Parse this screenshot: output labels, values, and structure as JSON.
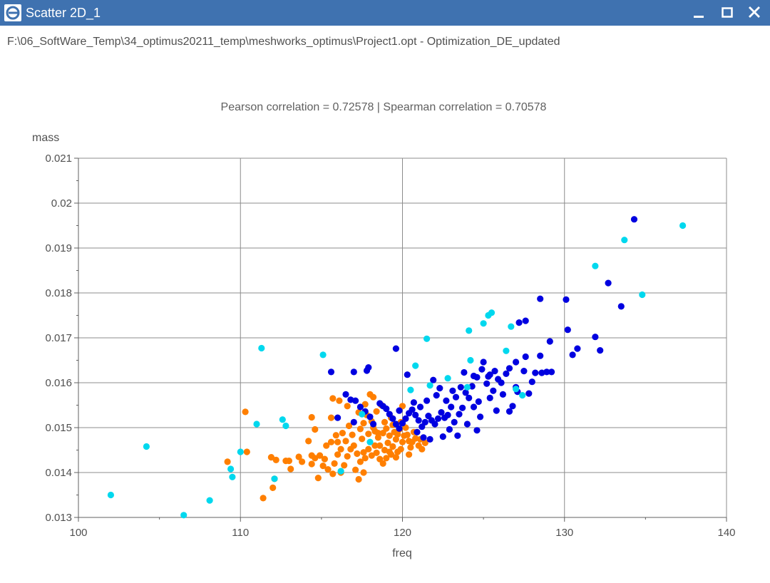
{
  "window": {
    "title": "Scatter 2D_1",
    "icon": "optimus-e-icon",
    "controls": [
      "minimize-icon",
      "maximize-icon",
      "close-icon"
    ]
  },
  "file_path": "F:\\06_SoftWare_Temp\\34_optimus20211_temp\\meshworks_optimus\\Project1.opt - Optimization_DE_updated",
  "chart_data": {
    "type": "scatter",
    "title": "Pearson correlation = 0.72578 | Spearman correlation = 0.70578",
    "xlabel": "freq",
    "ylabel": "mass",
    "xlim": [
      100,
      140
    ],
    "ylim": [
      0.013,
      0.021
    ],
    "xticks": [
      "100",
      "110",
      "120",
      "130",
      "140"
    ],
    "yticks": [
      "0.013",
      "0.014",
      "0.015",
      "0.016",
      "0.017",
      "0.018",
      "0.019",
      "0.02",
      "0.021"
    ],
    "grid": true,
    "legend": "none",
    "series": [
      {
        "color": "#ff7f00",
        "points": [
          [
            110.3,
            0.01535
          ],
          [
            110.4,
            0.01446
          ],
          [
            109.2,
            0.01424
          ],
          [
            111.4,
            0.01343
          ],
          [
            112.0,
            0.01366
          ],
          [
            112.1,
            0.01386
          ],
          [
            112.2,
            0.01428
          ],
          [
            111.9,
            0.01434
          ],
          [
            112.8,
            0.01426
          ],
          [
            113.0,
            0.01426
          ],
          [
            114.4,
            0.01523
          ],
          [
            114.4,
            0.01438
          ],
          [
            114.6,
            0.01432
          ],
          [
            114.9,
            0.01438
          ],
          [
            114.4,
            0.01419
          ],
          [
            114.8,
            0.01388
          ],
          [
            115.1,
            0.01415
          ],
          [
            115.2,
            0.0143
          ],
          [
            115.3,
            0.0146
          ],
          [
            115.6,
            0.01468
          ],
          [
            114.6,
            0.01496
          ],
          [
            115.6,
            0.01522
          ],
          [
            115.7,
            0.01565
          ],
          [
            116.1,
            0.0156
          ],
          [
            115.9,
            0.01483
          ],
          [
            116.0,
            0.01468
          ],
          [
            116.0,
            0.0144
          ],
          [
            115.8,
            0.0142
          ],
          [
            115.7,
            0.01397
          ],
          [
            116.2,
            0.014
          ],
          [
            116.4,
            0.01416
          ],
          [
            116.6,
            0.01436
          ],
          [
            116.8,
            0.01452
          ],
          [
            116.5,
            0.0147
          ],
          [
            116.3,
            0.01488
          ],
          [
            116.7,
            0.01504
          ],
          [
            116.9,
            0.01484
          ],
          [
            117.0,
            0.0146
          ],
          [
            117.2,
            0.01442
          ],
          [
            117.4,
            0.01424
          ],
          [
            117.1,
            0.01406
          ],
          [
            117.3,
            0.01385
          ],
          [
            117.6,
            0.014
          ],
          [
            117.7,
            0.01432
          ],
          [
            117.9,
            0.01452
          ],
          [
            117.5,
            0.01475
          ],
          [
            117.4,
            0.01497
          ],
          [
            117.6,
            0.0151
          ],
          [
            117.8,
            0.01528
          ],
          [
            117.7,
            0.01552
          ],
          [
            118.0,
            0.01574
          ],
          [
            118.2,
            0.01568
          ],
          [
            118.4,
            0.01536
          ],
          [
            118.1,
            0.01514
          ],
          [
            118.3,
            0.01492
          ],
          [
            118.5,
            0.01478
          ],
          [
            118.6,
            0.0146
          ],
          [
            118.4,
            0.01444
          ],
          [
            118.6,
            0.0143
          ],
          [
            118.8,
            0.0142
          ],
          [
            119.0,
            0.01432
          ],
          [
            118.9,
            0.0145
          ],
          [
            119.1,
            0.01466
          ],
          [
            119.2,
            0.01482
          ],
          [
            119.0,
            0.01498
          ],
          [
            118.9,
            0.01512
          ],
          [
            119.3,
            0.01522
          ],
          [
            119.4,
            0.01506
          ],
          [
            119.5,
            0.0149
          ],
          [
            119.6,
            0.01474
          ],
          [
            119.4,
            0.01458
          ],
          [
            119.3,
            0.0144
          ],
          [
            119.6,
            0.01434
          ],
          [
            119.7,
            0.01446
          ],
          [
            119.9,
            0.01452
          ],
          [
            120.0,
            0.01468
          ],
          [
            120.1,
            0.01482
          ],
          [
            119.8,
            0.01496
          ],
          [
            119.9,
            0.01512
          ],
          [
            120.2,
            0.015
          ],
          [
            120.3,
            0.01484
          ],
          [
            120.4,
            0.0147
          ],
          [
            120.5,
            0.01456
          ],
          [
            120.6,
            0.01468
          ],
          [
            120.8,
            0.01476
          ],
          [
            121.0,
            0.0146
          ],
          [
            121.2,
            0.01452
          ],
          [
            121.4,
            0.01466
          ],
          [
            121.1,
            0.01474
          ],
          [
            120.7,
            0.0149
          ],
          [
            120.0,
            0.01548
          ],
          [
            118.7,
            0.0155
          ],
          [
            118.2,
            0.015
          ],
          [
            117.3,
            0.01534
          ],
          [
            116.6,
            0.01548
          ],
          [
            118.8,
            0.01488
          ],
          [
            119.2,
            0.01446
          ],
          [
            118.3,
            0.0146
          ],
          [
            117.9,
            0.01486
          ],
          [
            120.4,
            0.0144
          ],
          [
            114.2,
            0.0147
          ],
          [
            113.8,
            0.01424
          ],
          [
            113.6,
            0.01435
          ],
          [
            113.1,
            0.01408
          ],
          [
            115.4,
            0.01407
          ],
          [
            116.2,
            0.01452
          ],
          [
            117.6,
            0.01445
          ],
          [
            118.1,
            0.01438
          ],
          [
            118.5,
            0.01488
          ],
          [
            119.7,
            0.01485
          ]
        ]
      },
      {
        "color": "#0000e0",
        "points": [
          [
            115.6,
            0.01624
          ],
          [
            117.0,
            0.01624
          ],
          [
            117.8,
            0.01627
          ],
          [
            117.9,
            0.01634
          ],
          [
            119.6,
            0.01676
          ],
          [
            120.3,
            0.01618
          ],
          [
            121.9,
            0.01606
          ],
          [
            123.8,
            0.01623
          ],
          [
            124.4,
            0.01615
          ],
          [
            124.6,
            0.01612
          ],
          [
            124.9,
            0.0163
          ],
          [
            125.0,
            0.01646
          ],
          [
            125.3,
            0.01614
          ],
          [
            125.4,
            0.01618
          ],
          [
            125.7,
            0.01626
          ],
          [
            125.6,
            0.01582
          ],
          [
            125.9,
            0.01608
          ],
          [
            126.1,
            0.016
          ],
          [
            126.4,
            0.0162
          ],
          [
            126.6,
            0.01632
          ],
          [
            127.0,
            0.01646
          ],
          [
            127.5,
            0.01626
          ],
          [
            127.6,
            0.01658
          ],
          [
            128.2,
            0.01622
          ],
          [
            128.5,
            0.0166
          ],
          [
            128.6,
            0.01622
          ],
          [
            128.9,
            0.01624
          ],
          [
            129.1,
            0.01692
          ],
          [
            129.2,
            0.01624
          ],
          [
            128.5,
            0.01787
          ],
          [
            127.6,
            0.01738
          ],
          [
            127.2,
            0.01734
          ],
          [
            128.0,
            0.01602
          ],
          [
            127.8,
            0.01576
          ],
          [
            127.0,
            0.0159
          ],
          [
            126.6,
            0.01536
          ],
          [
            126.2,
            0.01574
          ],
          [
            125.4,
            0.01566
          ],
          [
            125.2,
            0.01598
          ],
          [
            124.7,
            0.01558
          ],
          [
            124.4,
            0.01546
          ],
          [
            124.1,
            0.01566
          ],
          [
            123.7,
            0.01544
          ],
          [
            123.5,
            0.0153
          ],
          [
            123.3,
            0.01568
          ],
          [
            123.0,
            0.01546
          ],
          [
            122.8,
            0.01528
          ],
          [
            122.6,
            0.01522
          ],
          [
            122.4,
            0.01534
          ],
          [
            122.2,
            0.0152
          ],
          [
            122.0,
            0.01508
          ],
          [
            121.8,
            0.01516
          ],
          [
            121.6,
            0.01526
          ],
          [
            121.4,
            0.01512
          ],
          [
            121.2,
            0.01502
          ],
          [
            121.0,
            0.01516
          ],
          [
            120.8,
            0.01528
          ],
          [
            120.6,
            0.0154
          ],
          [
            120.4,
            0.01532
          ],
          [
            120.2,
            0.0152
          ],
          [
            120.0,
            0.0151
          ],
          [
            119.8,
            0.01498
          ],
          [
            119.6,
            0.01508
          ],
          [
            119.4,
            0.0152
          ],
          [
            119.2,
            0.0153
          ],
          [
            119.0,
            0.01542
          ],
          [
            118.8,
            0.01548
          ],
          [
            118.6,
            0.01554
          ],
          [
            118.2,
            0.01508
          ],
          [
            118.0,
            0.01524
          ],
          [
            117.7,
            0.01536
          ],
          [
            117.4,
            0.01546
          ],
          [
            117.1,
            0.0156
          ],
          [
            116.8,
            0.01562
          ],
          [
            116.5,
            0.01574
          ],
          [
            116.0,
            0.01522
          ],
          [
            117.0,
            0.01512
          ],
          [
            121.5,
            0.0156
          ],
          [
            122.1,
            0.01572
          ],
          [
            122.3,
            0.01588
          ],
          [
            122.7,
            0.0156
          ],
          [
            123.1,
            0.01582
          ],
          [
            123.6,
            0.0159
          ],
          [
            123.9,
            0.01578
          ],
          [
            124.3,
            0.01592
          ],
          [
            121.7,
            0.01474
          ],
          [
            122.9,
            0.01496
          ],
          [
            123.4,
            0.01482
          ],
          [
            124.0,
            0.01508
          ],
          [
            124.6,
            0.01494
          ],
          [
            120.9,
            0.0149
          ],
          [
            121.3,
            0.01478
          ],
          [
            122.5,
            0.0148
          ],
          [
            119.8,
            0.01538
          ],
          [
            120.7,
            0.01556
          ],
          [
            121.1,
            0.01546
          ],
          [
            130.1,
            0.01785
          ],
          [
            130.2,
            0.01718
          ],
          [
            130.5,
            0.01662
          ],
          [
            130.8,
            0.01676
          ],
          [
            131.9,
            0.01702
          ],
          [
            132.2,
            0.01672
          ],
          [
            132.7,
            0.01822
          ],
          [
            133.5,
            0.0177
          ],
          [
            134.3,
            0.01964
          ],
          [
            127.1,
            0.0158
          ],
          [
            126.8,
            0.01548
          ],
          [
            125.8,
            0.01538
          ],
          [
            124.8,
            0.01524
          ],
          [
            123.2,
            0.01512
          ]
        ]
      },
      {
        "color": "#00d8ee",
        "points": [
          [
            102.0,
            0.0135
          ],
          [
            104.2,
            0.01458
          ],
          [
            106.5,
            0.01305
          ],
          [
            108.1,
            0.01338
          ],
          [
            109.4,
            0.01408
          ],
          [
            109.5,
            0.0139
          ],
          [
            110.0,
            0.01446
          ],
          [
            111.0,
            0.01508
          ],
          [
            111.3,
            0.01677
          ],
          [
            112.1,
            0.01386
          ],
          [
            112.6,
            0.01518
          ],
          [
            112.8,
            0.01504
          ],
          [
            115.1,
            0.01662
          ],
          [
            116.2,
            0.01403
          ],
          [
            117.5,
            0.0153
          ],
          [
            118.0,
            0.01468
          ],
          [
            120.5,
            0.01584
          ],
          [
            120.8,
            0.01638
          ],
          [
            121.5,
            0.01698
          ],
          [
            121.7,
            0.01594
          ],
          [
            122.8,
            0.0161
          ],
          [
            124.1,
            0.01716
          ],
          [
            124.2,
            0.0165
          ],
          [
            124.0,
            0.0159
          ],
          [
            125.0,
            0.01732
          ],
          [
            125.3,
            0.0175
          ],
          [
            125.5,
            0.01756
          ],
          [
            126.4,
            0.01671
          ],
          [
            126.7,
            0.01725
          ],
          [
            127.0,
            0.01586
          ],
          [
            127.4,
            0.01572
          ],
          [
            131.9,
            0.0186
          ],
          [
            133.7,
            0.01918
          ],
          [
            134.8,
            0.01796
          ],
          [
            137.3,
            0.0195
          ]
        ]
      }
    ]
  }
}
